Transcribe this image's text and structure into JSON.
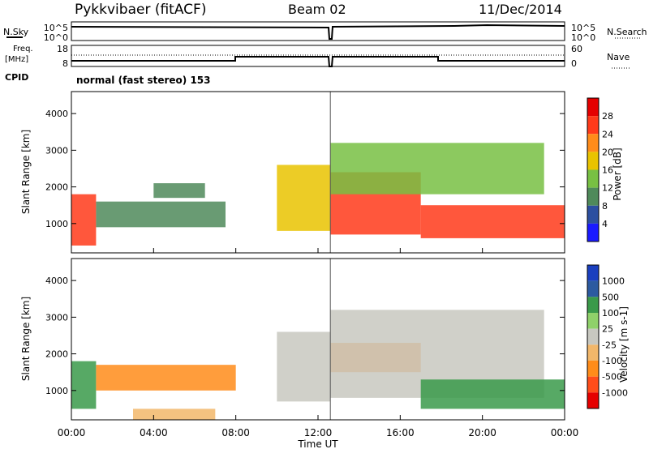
{
  "header": {
    "station": "Pykkvibaer (fitACF)",
    "beam": "Beam 02",
    "date": "11/Dec/2014"
  },
  "noise_panel": {
    "left_label": "N.Sky",
    "right_label": "N.Search",
    "left_ticks": [
      "10^5",
      "10^0"
    ],
    "right_ticks": [
      "10^5",
      "10^0"
    ]
  },
  "freq_panel": {
    "left_label_1": "Freq.",
    "left_label_2": "[MHz]",
    "cpid_label": "CPID",
    "right_label": "Nave",
    "left_ticks": [
      "18",
      "8"
    ],
    "right_ticks": [
      "60",
      "0"
    ],
    "cpid_text": "normal (fast stereo) 153"
  },
  "time_axis": {
    "label": "Time UT",
    "ticks": [
      "00:00",
      "04:00",
      "08:00",
      "12:00",
      "16:00",
      "20:00",
      "00:00"
    ]
  },
  "colors": {
    "power_scale": [
      "#1a1aff",
      "#2c4fa0",
      "#4f8a5a",
      "#78c043",
      "#e9c300",
      "#ff8c1a",
      "#ff3a1a",
      "#e50000"
    ],
    "velocity_scale": [
      "#e50000",
      "#ff4d1a",
      "#ff8c1a",
      "#f2b76a",
      "#c8c8c0",
      "#8fd16a",
      "#3a9a4a",
      "#2c5aa0",
      "#1a3fbf"
    ]
  },
  "chart_data": [
    {
      "type": "heatmap",
      "name": "power",
      "ylabel": "Slant Range [km]",
      "yticks": [
        "1000",
        "2000",
        "3000",
        "4000"
      ],
      "ylim": [
        200,
        4600
      ],
      "xlim": [
        "00:00",
        "24:00"
      ],
      "colorbar": {
        "label": "Power [dB]",
        "ticks": [
          "4",
          "8",
          "12",
          "16",
          "20",
          "24",
          "28"
        ],
        "range": [
          0,
          32
        ]
      },
      "regions": [
        {
          "t0": 0.0,
          "t1": 1.2,
          "r0": 400,
          "r1": 1800,
          "value": 24
        },
        {
          "t0": 1.2,
          "t1": 7.5,
          "r0": 900,
          "r1": 1600,
          "value": 8
        },
        {
          "t0": 4.0,
          "t1": 6.5,
          "r0": 1700,
          "r1": 2100,
          "value": 8
        },
        {
          "t0": 10.0,
          "t1": 12.6,
          "r0": 800,
          "r1": 2600,
          "value": 18
        },
        {
          "t0": 12.6,
          "t1": 17.0,
          "r0": 700,
          "r1": 2400,
          "value": 27
        },
        {
          "t0": 12.6,
          "t1": 23.0,
          "r0": 1800,
          "r1": 3200,
          "value": 14
        },
        {
          "t0": 17.0,
          "t1": 24.0,
          "r0": 600,
          "r1": 1500,
          "value": 26
        }
      ]
    },
    {
      "type": "heatmap",
      "name": "velocity",
      "ylabel": "Slant Range [km]",
      "yticks": [
        "1000",
        "2000",
        "3000",
        "4000"
      ],
      "ylim": [
        200,
        4600
      ],
      "xlim": [
        "00:00",
        "24:00"
      ],
      "colorbar": {
        "label": "Velocity [m s-1]",
        "ticks": [
          "1000",
          "500",
          "100",
          "25",
          "-25",
          "-100",
          "-500",
          "-1000"
        ]
      },
      "regions": [
        {
          "t0": 0.0,
          "t1": 1.2,
          "r0": 500,
          "r1": 1800,
          "value": 120
        },
        {
          "t0": 1.2,
          "t1": 8.0,
          "r0": 1000,
          "r1": 1700,
          "value": -300
        },
        {
          "t0": 3.0,
          "t1": 7.0,
          "r0": 200,
          "r1": 500,
          "value": -60
        },
        {
          "t0": 10.0,
          "t1": 12.6,
          "r0": 700,
          "r1": 2600,
          "value": 0
        },
        {
          "t0": 12.6,
          "t1": 17.0,
          "r0": 1500,
          "r1": 2300,
          "value": -200
        },
        {
          "t0": 12.6,
          "t1": 23.0,
          "r0": 800,
          "r1": 3200,
          "value": 0
        },
        {
          "t0": 17.0,
          "t1": 24.0,
          "r0": 500,
          "r1": 1300,
          "value": 300
        }
      ]
    }
  ]
}
